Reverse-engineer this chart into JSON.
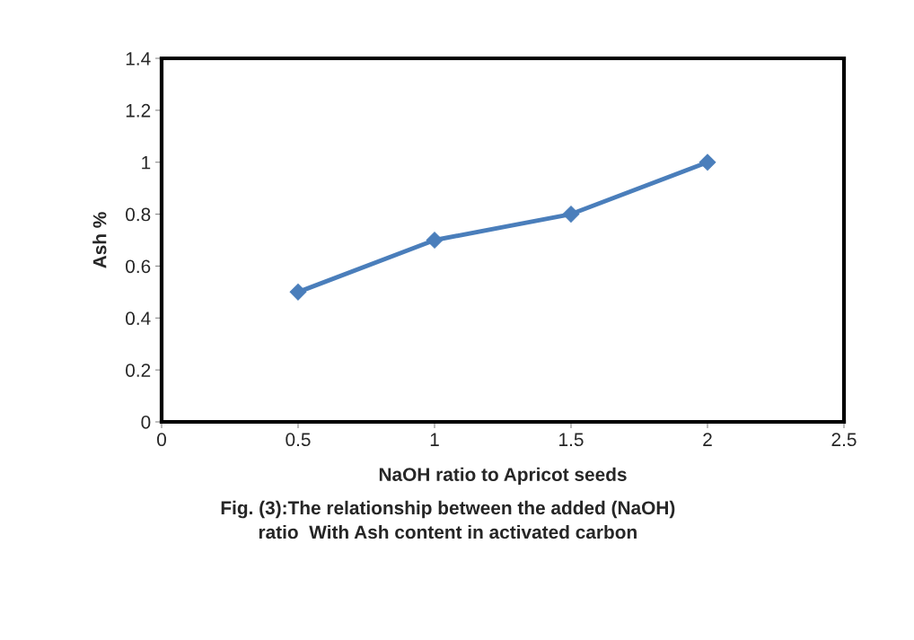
{
  "chart_data": {
    "type": "line",
    "xlabel": "NaOH ratio to Apricot seeds",
    "ylabel": "Ash %",
    "x": [
      0.5,
      1,
      1.5,
      2
    ],
    "series": [
      {
        "color": "#4a7ebb",
        "values": [
          0.5,
          0.7,
          0.8,
          1.0
        ]
      }
    ],
    "xlim": [
      0,
      2.5
    ],
    "xticks": [
      0,
      0.5,
      1,
      1.5,
      2,
      2.5
    ],
    "ylim": [
      0,
      1.4
    ],
    "yticks": [
      0,
      0.2,
      0.4,
      0.6,
      0.8,
      1,
      1.2,
      1.4
    ],
    "marker": "diamond",
    "line_style": "solid",
    "grid": false,
    "legend": false,
    "annotations": [
      "Fig. (3):The relationship between the added (NaOH)\nratio  With Ash content in activated carbon"
    ]
  }
}
